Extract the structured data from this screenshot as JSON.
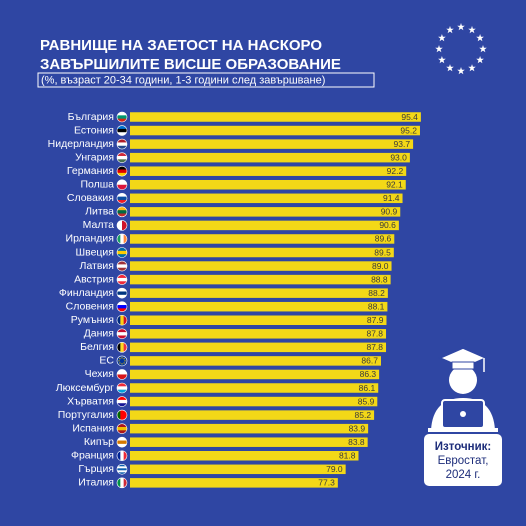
{
  "chart_data": {
    "type": "hbar",
    "title": [
      "РАВНИЩЕ НА ЗАЕТОСТ НА НАСКОРО",
      "ЗАВЪРШИЛИТЕ ВИСШЕ ОБРАЗОВАНИЕ"
    ],
    "subtitle": "(%, възраст 20-34 години, 1-3 години след завършване)",
    "categories": [
      "България",
      "Естония",
      "Нидерландия",
      "Унгария",
      "Германия",
      "Полша",
      "Словакия",
      "Литва",
      "Малта",
      "Ирландия",
      "Швеция",
      "Латвия",
      "Австрия",
      "Финландия",
      "Словения",
      "Румъния",
      "Дания",
      "Белгия",
      "ЕС",
      "Чехия",
      "Люксембург",
      "Хърватия",
      "Португалия",
      "Испания",
      "Кипър",
      "Франция",
      "Гърция",
      "Италия"
    ],
    "values": [
      95.4,
      95.2,
      93.7,
      93.0,
      92.2,
      92.1,
      91.4,
      90.9,
      90.6,
      89.6,
      89.5,
      89.0,
      88.8,
      88.2,
      88.1,
      87.9,
      87.8,
      87.8,
      86.7,
      86.3,
      86.1,
      85.9,
      85.2,
      83.9,
      83.8,
      81.8,
      79.0,
      77.3
    ],
    "value_labels": [
      "95.4",
      "95.2",
      "93.7",
      "93.0",
      "92.2",
      "92.1",
      "91.4",
      "90.9",
      "90.6",
      "89.6",
      "89.5",
      "89.0",
      "88.8",
      "88.2",
      "88.1",
      "87.9",
      "87.8",
      "87.8",
      "86.7",
      "86.3",
      "86.1",
      "85.9",
      "85.2",
      "83.9",
      "83.8",
      "81.8",
      "79.0",
      "77.3"
    ],
    "color": "#f3d817",
    "xlim": [
      32,
      100
    ],
    "source": {
      "label": "Източник:",
      "lines": [
        "Евростат,",
        "2024 г."
      ]
    }
  }
}
